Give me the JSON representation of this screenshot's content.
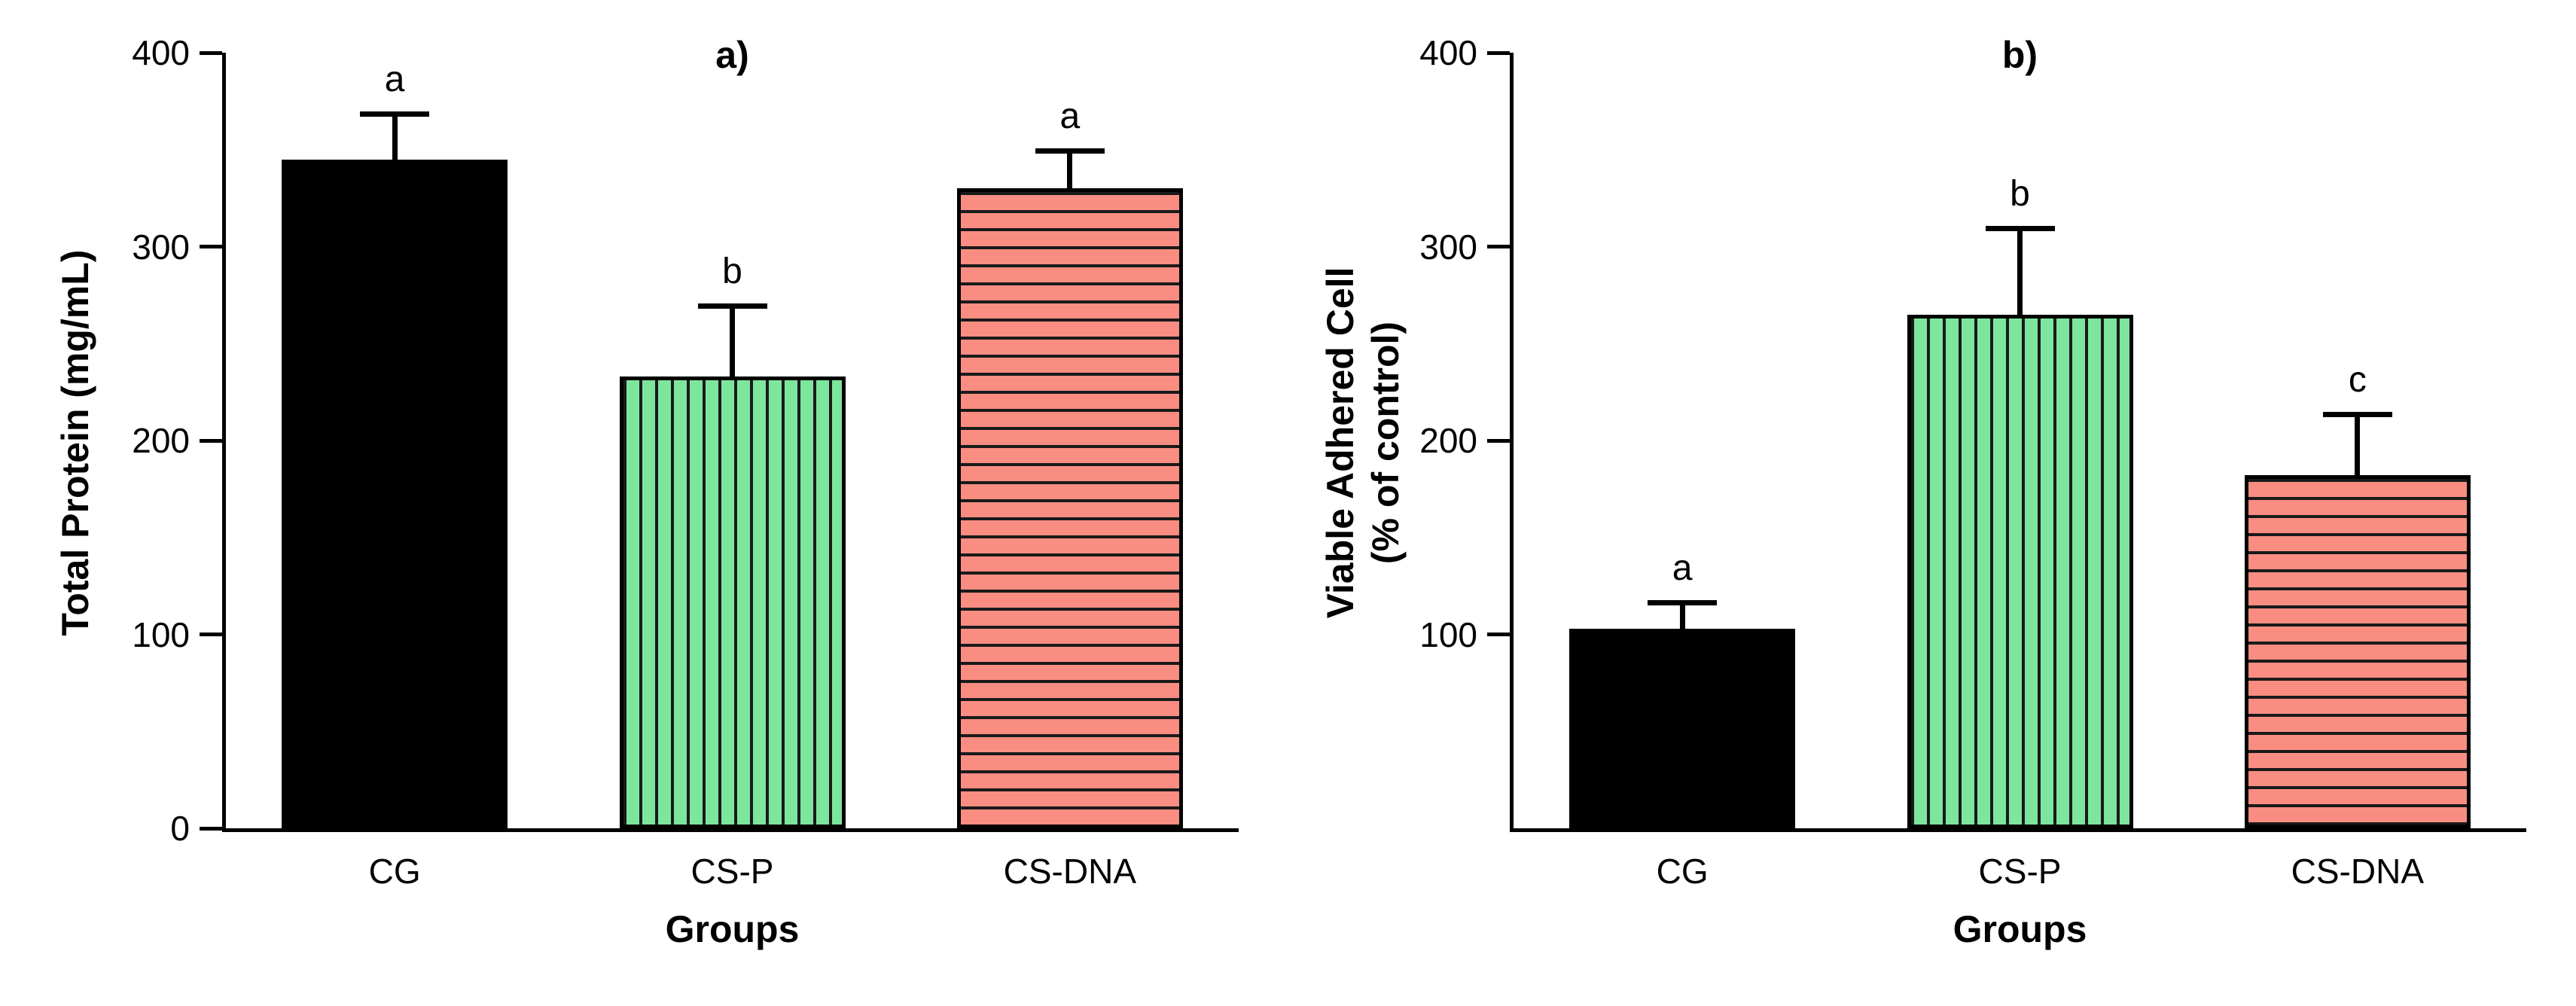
{
  "figure": {
    "background": "#ffffff",
    "font_color": "#000000",
    "axis_color": "#000000"
  },
  "chart_data": [
    {
      "type": "bar",
      "panel_label": "a)",
      "title": "a)",
      "xlabel": "Groups",
      "ylabel": "Total Protein (mg/mL)",
      "ylim": [
        0,
        400
      ],
      "yticks": [
        0,
        100,
        200,
        300,
        400
      ],
      "grid": false,
      "legend": "none",
      "categories": [
        "CG",
        "CS-P",
        "CS-DNA"
      ],
      "values": [
        345,
        233,
        330
      ],
      "errors": [
        22,
        35,
        18
      ],
      "sig_letters": [
        "a",
        "b",
        "a"
      ],
      "bar_styles": [
        {
          "fill": "#000000",
          "pattern": "solid",
          "pattern_color": "#000000"
        },
        {
          "fill": "#7de69d",
          "pattern": "vertical",
          "pattern_color": "#1a1a1a"
        },
        {
          "fill": "#f98d82",
          "pattern": "horizontal",
          "pattern_color": "#1a1a1a"
        }
      ]
    },
    {
      "type": "bar",
      "panel_label": "b)",
      "title": "b)",
      "xlabel": "Groups",
      "ylabel": "Viable Adhered Cell\n(% of control)",
      "ylim": [
        0,
        400
      ],
      "yticks": [
        100,
        200,
        300,
        400
      ],
      "grid": false,
      "legend": "none",
      "categories": [
        "CG",
        "CS-P",
        "CS-DNA"
      ],
      "values": [
        103,
        265,
        182
      ],
      "errors": [
        12,
        43,
        30
      ],
      "sig_letters": [
        "a",
        "b",
        "c"
      ],
      "bar_styles": [
        {
          "fill": "#000000",
          "pattern": "solid",
          "pattern_color": "#000000"
        },
        {
          "fill": "#7de69d",
          "pattern": "vertical",
          "pattern_color": "#1a1a1a"
        },
        {
          "fill": "#f98d82",
          "pattern": "horizontal",
          "pattern_color": "#1a1a1a"
        }
      ]
    }
  ]
}
